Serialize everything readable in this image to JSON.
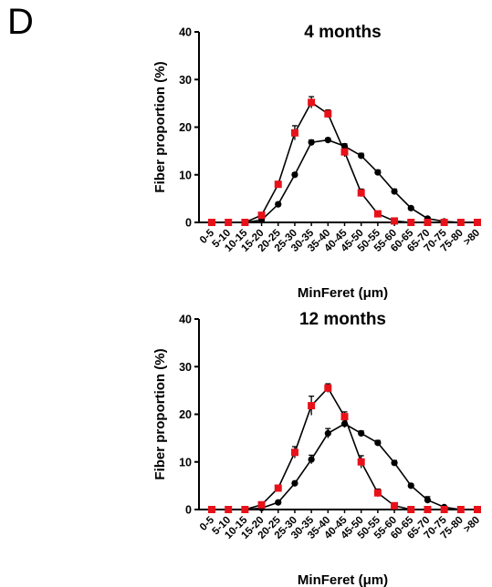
{
  "figure": {
    "panel_letter": "D"
  },
  "chart_data": [
    {
      "type": "line",
      "title": "4 months",
      "xlabel": "MinFeret (μm)",
      "ylabel": "Fiber proportion (%)",
      "ylim": [
        0,
        40
      ],
      "yticks": [
        0,
        10,
        20,
        30,
        40
      ],
      "categories": [
        "0-5",
        "5-10",
        "10-15",
        "15-20",
        "20-25",
        "25-30",
        "30-35",
        "35-40",
        "40-45",
        "45-50",
        "50-55",
        "55-60",
        "60-65",
        "65-70",
        "70-75",
        "75-80",
        ">80"
      ],
      "series": [
        {
          "color": "#000000",
          "marker": "circle",
          "values": [
            0,
            0,
            0,
            0.5,
            3.8,
            10.0,
            16.8,
            17.3,
            16.0,
            14.0,
            10.5,
            6.5,
            3.0,
            0.8,
            0.2,
            0,
            0
          ],
          "errors": [
            0,
            0,
            0,
            0.2,
            0.4,
            0.4,
            0.5,
            0.4,
            0.5,
            0.5,
            0.5,
            0.5,
            0.3,
            0.2,
            0.1,
            0,
            0
          ]
        },
        {
          "color": "#e8111a",
          "marker": "square",
          "values": [
            0,
            0,
            0,
            1.5,
            8.0,
            18.8,
            25.2,
            22.8,
            14.8,
            6.2,
            1.8,
            0.3,
            0,
            0,
            0,
            0,
            0
          ],
          "errors": [
            0,
            0,
            0,
            0.3,
            0.6,
            1.5,
            1.2,
            0.8,
            1.0,
            0.8,
            0.3,
            0.1,
            0,
            0,
            0,
            0,
            0
          ]
        }
      ]
    },
    {
      "type": "line",
      "title": "12 months",
      "xlabel": "MinFeret (μm)",
      "ylabel": "Fiber proportion (%)",
      "ylim": [
        0,
        40
      ],
      "yticks": [
        0,
        10,
        20,
        30,
        40
      ],
      "categories": [
        "0-5",
        "5-10",
        "10-15",
        "15-20",
        "20-25",
        "25-30",
        "30-35",
        "35-40",
        "40-45",
        "45-50",
        "50-55",
        "55-60",
        "60-65",
        "65-70",
        "70-75",
        "75-80",
        ">80"
      ],
      "series": [
        {
          "color": "#000000",
          "marker": "circle",
          "values": [
            0,
            0,
            0,
            0.3,
            1.5,
            5.5,
            10.5,
            16.0,
            18.0,
            16.0,
            14.0,
            9.8,
            5.0,
            2.0,
            0.5,
            0,
            0
          ],
          "errors": [
            0,
            0,
            0,
            0.1,
            0.3,
            0.4,
            0.9,
            1.0,
            0.8,
            0.5,
            0.5,
            0.5,
            0.4,
            0.7,
            0.2,
            0,
            0
          ]
        },
        {
          "color": "#e8111a",
          "marker": "square",
          "values": [
            0,
            0,
            0,
            1.0,
            4.5,
            12.0,
            21.8,
            25.5,
            19.5,
            10.0,
            3.5,
            0.8,
            0,
            0,
            0,
            0,
            0
          ],
          "errors": [
            0,
            0,
            0,
            0.3,
            0.5,
            1.2,
            2.0,
            0.9,
            1.0,
            1.3,
            0.8,
            0.3,
            0,
            0,
            0,
            0,
            0
          ]
        }
      ]
    }
  ]
}
